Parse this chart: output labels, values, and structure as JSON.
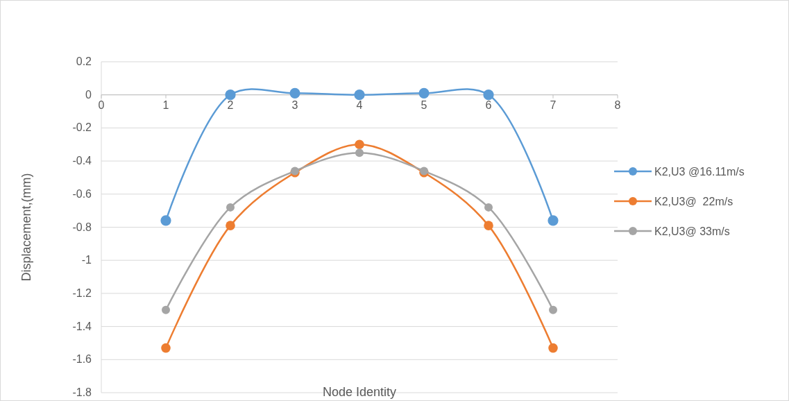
{
  "chart_data": {
    "type": "line",
    "xlabel": "Node Identity",
    "ylabel": "Displacement,(mm)",
    "x": [
      1,
      2,
      3,
      4,
      5,
      6,
      7
    ],
    "series": [
      {
        "name": "K2,U3 @16.11m/s",
        "color": "#5b9bd5",
        "values": [
          -0.76,
          0,
          0.01,
          0,
          0.01,
          0,
          -0.76
        ]
      },
      {
        "name": "K2,U3@  22m/s",
        "color": "#ed7d31",
        "values": [
          -1.53,
          -0.79,
          -0.47,
          -0.3,
          -0.47,
          -0.79,
          -1.53
        ]
      },
      {
        "name": "K2,U3@ 33m/s",
        "color": "#a5a5a5",
        "values": [
          -1.3,
          -0.68,
          -0.46,
          -0.35,
          -0.46,
          -0.68,
          -1.3
        ]
      }
    ],
    "xlim": [
      0,
      8
    ],
    "xticks": [
      0,
      1,
      2,
      3,
      4,
      5,
      6,
      7,
      8
    ],
    "ylim": [
      -1.8,
      0.2
    ],
    "yticks": [
      0.2,
      0,
      -0.2,
      -0.4,
      -0.6,
      -0.8,
      -1,
      -1.2,
      -1.4,
      -1.6,
      -1.8
    ],
    "grid": "y",
    "legend": "right",
    "marker": "circle",
    "line_style": "solid"
  }
}
